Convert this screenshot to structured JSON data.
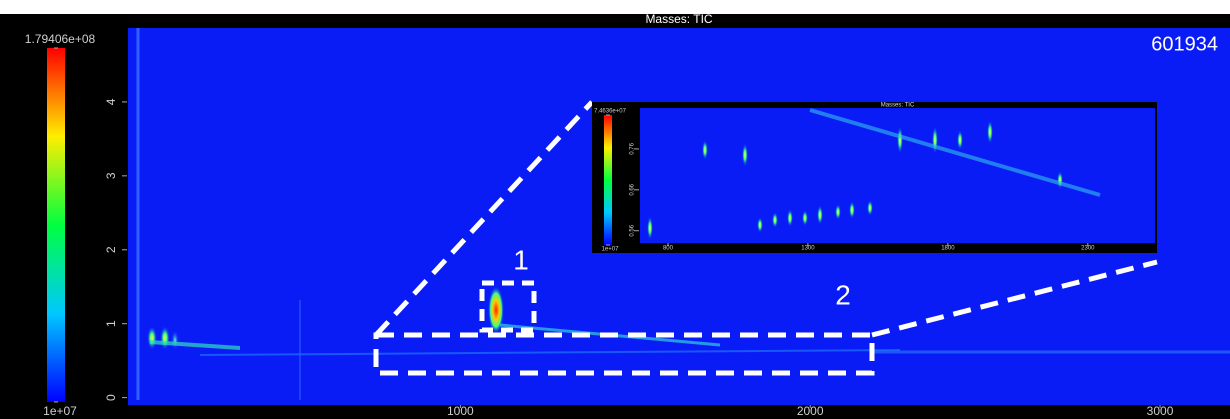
{
  "chart_data": [
    {
      "type": "heatmap",
      "title": "Masses: TIC",
      "xlim": [
        50,
        3200
      ],
      "xticks": [
        1000,
        2000,
        3000
      ],
      "ylim": [
        -0.1,
        5
      ],
      "yticks": [
        0,
        1,
        2,
        3,
        4
      ],
      "colorbar": [
        {
          "value": 10000000,
          "label": "1e+07"
        },
        {
          "value": 179406000,
          "label": "1.79406e+08"
        }
      ],
      "annotations": [
        "601934",
        "1",
        "2"
      ]
    },
    {
      "type": "heatmap",
      "title": "Masses: TIC",
      "xlim": [
        700,
        2540
      ],
      "xticks": [
        800,
        1300,
        1800,
        2300
      ],
      "ylim": [
        0.53,
        0.86
      ],
      "yticks": [
        0.56,
        0.66,
        0.76
      ],
      "colorbar": [
        {
          "value": 10000000,
          "label": "1e+07"
        },
        {
          "value": 74636000,
          "label": "7.4636e+07"
        }
      ]
    }
  ]
}
